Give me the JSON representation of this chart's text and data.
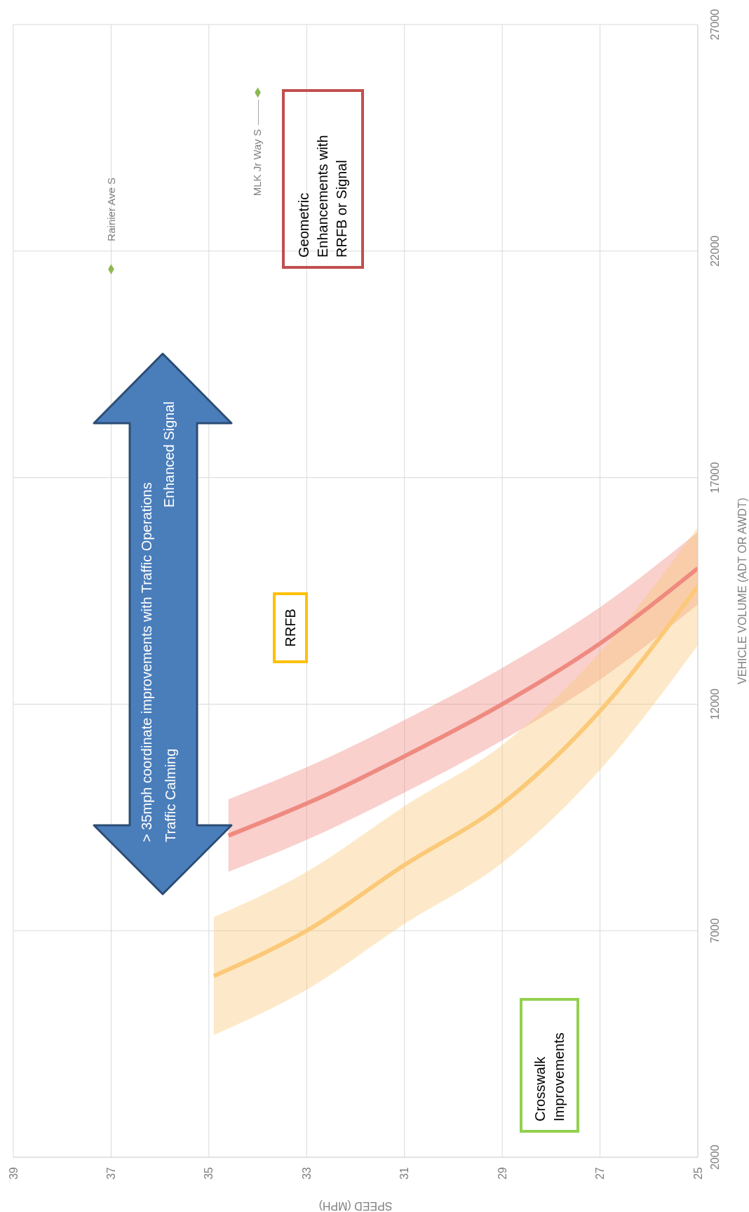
{
  "chart_data": {
    "type": "line",
    "xlabel": "SPEED (MPH)",
    "ylabel": "VEHICLE VOLUME (ADT OR AWDT)",
    "xlim": [
      39,
      25
    ],
    "xticks": [
      39,
      37,
      35,
      33,
      31,
      29,
      27,
      25
    ],
    "ylim": [
      2000,
      27000
    ],
    "yticks": [
      2000,
      7000,
      12000,
      17000,
      22000,
      27000
    ],
    "grid": true,
    "legend": false,
    "series": [
      {
        "color": "#ef8a80",
        "x": [
          34.6,
          32.6,
          31,
          29,
          27,
          25
        ],
        "values": [
          9100,
          10000,
          10850,
          12000,
          13340,
          15000
        ],
        "lower": [
          8300,
          9200,
          10050,
          11200,
          12540,
          14200
        ],
        "upper": [
          9900,
          10800,
          11650,
          12800,
          14140,
          15800
        ]
      },
      {
        "color": "#fbc978",
        "x": [
          34.9,
          33,
          31,
          29,
          27,
          25
        ],
        "values": [
          6000,
          7000,
          8450,
          9800,
          11850,
          14600
        ],
        "lower": [
          4700,
          5700,
          7150,
          8500,
          10550,
          13300
        ],
        "upper": [
          7300,
          8300,
          9750,
          11100,
          13150,
          15900
        ]
      },
      {
        "type": "scatter",
        "color": "#8db753",
        "marker": "diamond",
        "x": [
          37,
          34
        ],
        "values": [
          21600,
          25500
        ]
      }
    ],
    "annotations": [
      {
        "text": "Rainier Ave S",
        "x": 37,
        "y": 21600
      },
      "MLK Jr Way S",
      "> 35mph coordinate improvements with Traffic Operations",
      "Enhanced Signal",
      "Traffic Calming",
      "RRFB",
      "Geometric Enhancements with RRFB or Signal",
      "Crosswalk Improvements"
    ]
  }
}
